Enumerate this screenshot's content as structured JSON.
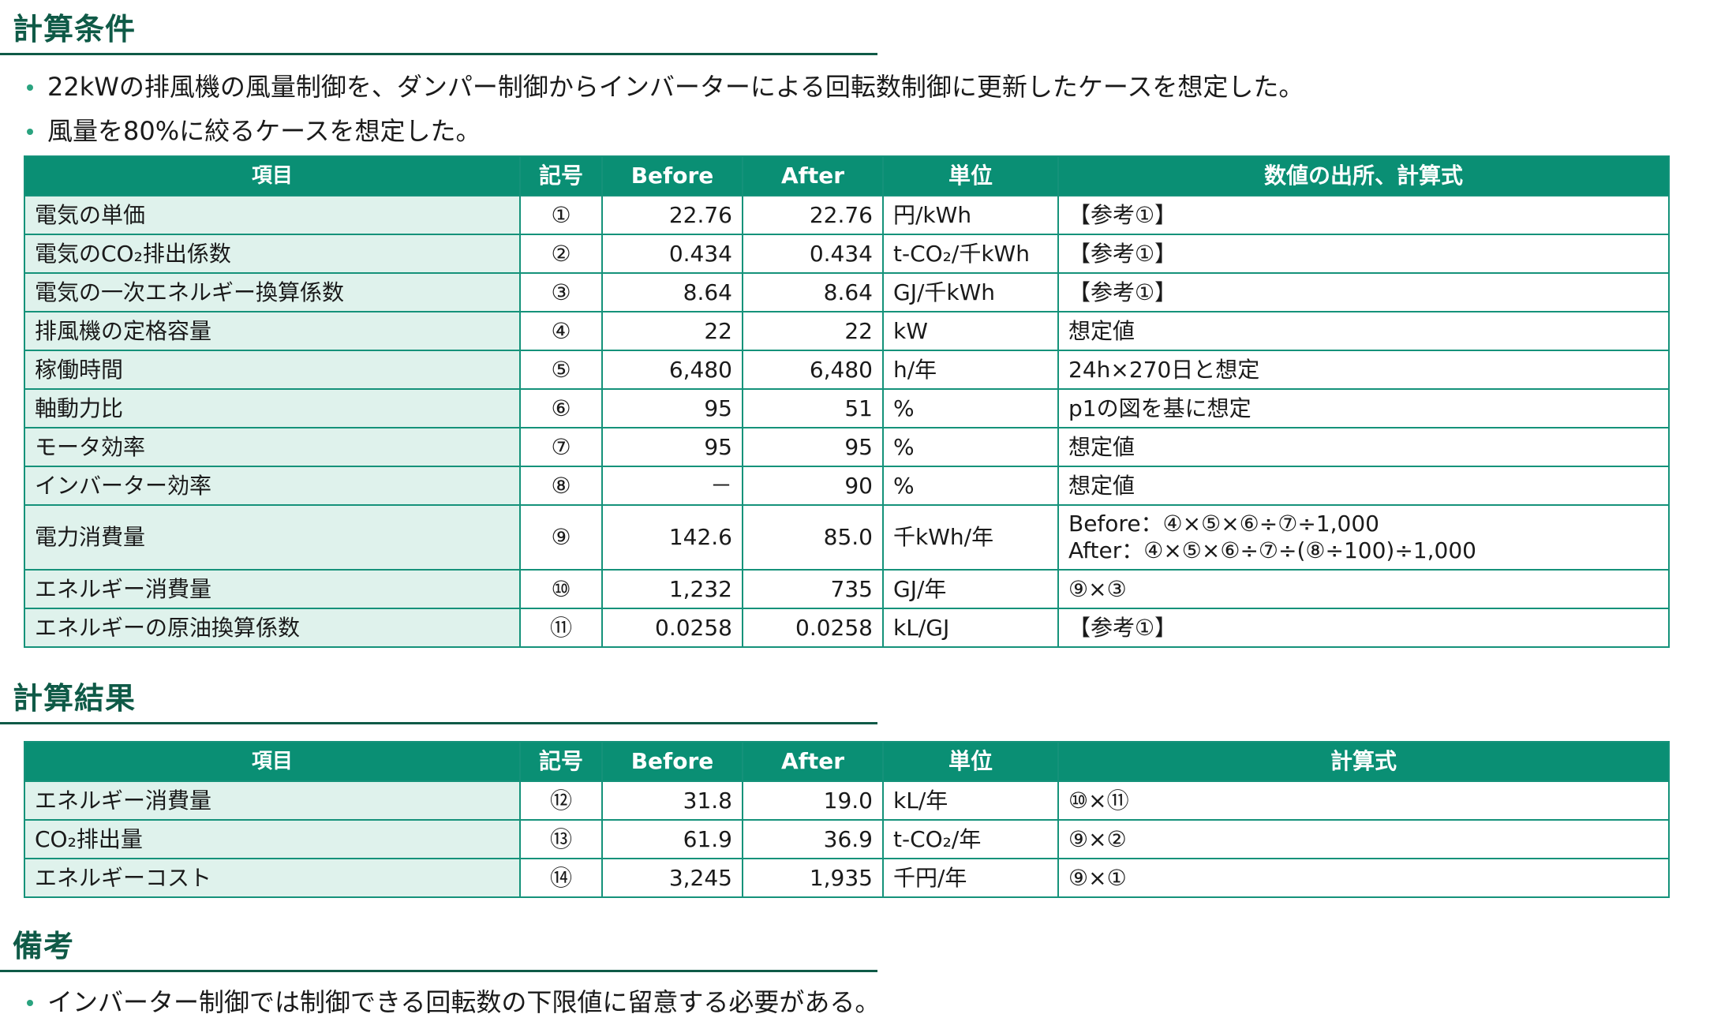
{
  "conditions": {
    "title": "計算条件",
    "bullets": [
      "22kWの排風機の風量制御を、ダンパー制御からインバーターによる回転数制御に更新したケースを想定した。",
      "風量を80%に絞るケースを想定した。"
    ],
    "headers": [
      "項目",
      "記号",
      "Before",
      "After",
      "単位",
      "数値の出所、計算式"
    ],
    "rows": [
      {
        "item": "電気の単価",
        "symbol": "①",
        "before": "22.76",
        "after": "22.76",
        "unit": "円/kWh",
        "source": "【参考①】"
      },
      {
        "item": "電気のCO₂排出係数",
        "symbol": "②",
        "before": "0.434",
        "after": "0.434",
        "unit": "t-CO₂/千kWh",
        "source": "【参考①】"
      },
      {
        "item": "電気の一次エネルギー換算係数",
        "symbol": "③",
        "before": "8.64",
        "after": "8.64",
        "unit": "GJ/千kWh",
        "source": "【参考①】"
      },
      {
        "item": "排風機の定格容量",
        "symbol": "④",
        "before": "22",
        "after": "22",
        "unit": "kW",
        "source": "想定値"
      },
      {
        "item": "稼働時間",
        "symbol": "⑤",
        "before": "6,480",
        "after": "6,480",
        "unit": "h/年",
        "source": "24h×270日と想定"
      },
      {
        "item": "軸動力比",
        "symbol": "⑥",
        "before": "95",
        "after": "51",
        "unit": "%",
        "source": "p1の図を基に想定"
      },
      {
        "item": "モータ効率",
        "symbol": "⑦",
        "before": "95",
        "after": "95",
        "unit": "%",
        "source": "想定値"
      },
      {
        "item": "インバーター効率",
        "symbol": "⑧",
        "before": "－",
        "after": "90",
        "unit": "%",
        "source": "想定値"
      },
      {
        "item": "電力消費量",
        "symbol": "⑨",
        "before": "142.6",
        "after": "85.0",
        "unit": "千kWh/年",
        "source": "Before：④×⑤×⑥÷⑦÷1,000",
        "source2": "After：④×⑤×⑥÷⑦÷(⑧÷100)÷1,000"
      },
      {
        "item": "エネルギー消費量",
        "symbol": "⑩",
        "before": "1,232",
        "after": "735",
        "unit": "GJ/年",
        "source": "⑨×③"
      },
      {
        "item": "エネルギーの原油換算係数",
        "symbol": "⑪",
        "before": "0.0258",
        "after": "0.0258",
        "unit": "kL/GJ",
        "source": "【参考①】"
      }
    ]
  },
  "results": {
    "title": "計算結果",
    "headers": [
      "項目",
      "記号",
      "Before",
      "After",
      "単位",
      "計算式"
    ],
    "rows": [
      {
        "item": "エネルギー消費量",
        "symbol": "⑫",
        "before": "31.8",
        "after": "19.0",
        "unit": "kL/年",
        "source": "⑩×⑪"
      },
      {
        "item": "CO₂排出量",
        "symbol": "⑬",
        "before": "61.9",
        "after": "36.9",
        "unit": "t-CO₂/年",
        "source": "⑨×②"
      },
      {
        "item": "エネルギーコスト",
        "symbol": "⑭",
        "before": "3,245",
        "after": "1,935",
        "unit": "千円/年",
        "source": "⑨×①"
      }
    ]
  },
  "remarks": {
    "title": "備考",
    "bullets": [
      "インバーター制御では制御できる回転数の下限値に留意する必要がある。"
    ]
  }
}
